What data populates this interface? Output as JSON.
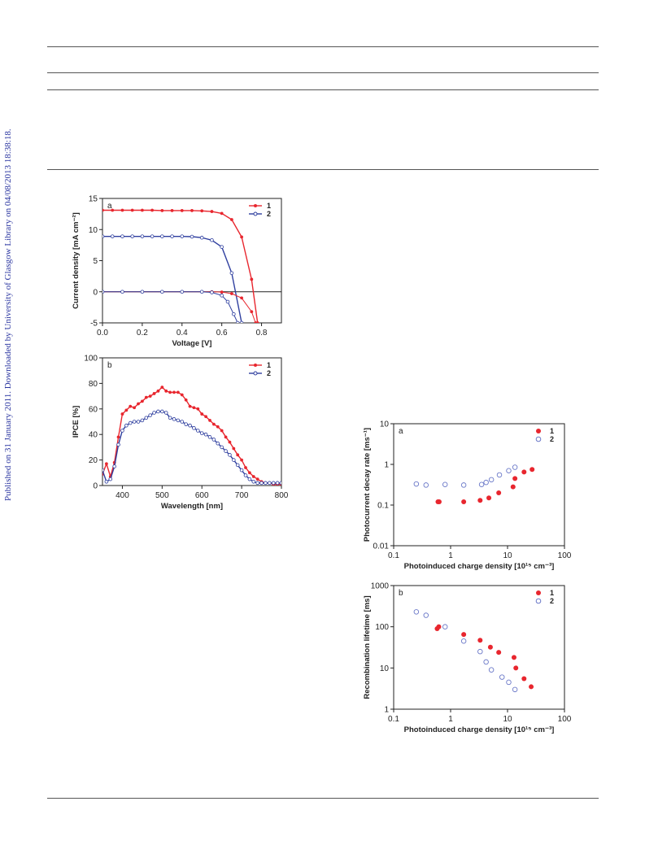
{
  "sidebar_text": "Published on 31 January 2011. Downloaded by University of Glasgow Library on 04/08/2013 18:38:18.",
  "colors": {
    "series1": "#e8262e",
    "series2": "#2f3f9f",
    "series2_open": "#6a78c8",
    "link": "#2a35a0"
  },
  "chart_data": [
    {
      "type": "line",
      "panel": "a",
      "xlabel": "Voltage [V]",
      "ylabel": "Current density [mA cm⁻²]",
      "xlim": [
        0,
        0.9
      ],
      "ylim": [
        -5,
        15
      ],
      "xticks": [
        "0.0",
        "0.2",
        "0.4",
        "0.6",
        "0.8"
      ],
      "yticks": [
        "-5",
        "0",
        "5",
        "10",
        "15"
      ],
      "legend": "top-right",
      "series": [
        {
          "name": "1",
          "kind": "light",
          "x": [
            0,
            0.05,
            0.1,
            0.15,
            0.2,
            0.25,
            0.3,
            0.35,
            0.4,
            0.45,
            0.5,
            0.55,
            0.6,
            0.65,
            0.7,
            0.75,
            0.78
          ],
          "y": [
            13.1,
            13.1,
            13.1,
            13.1,
            13.1,
            13.1,
            13.05,
            13.05,
            13.05,
            13.05,
            13.0,
            12.9,
            12.6,
            11.6,
            8.8,
            2.0,
            -5
          ]
        },
        {
          "name": "2",
          "kind": "light",
          "x": [
            0,
            0.05,
            0.1,
            0.15,
            0.2,
            0.25,
            0.3,
            0.35,
            0.4,
            0.45,
            0.5,
            0.55,
            0.6,
            0.65,
            0.7
          ],
          "y": [
            8.9,
            8.9,
            8.9,
            8.9,
            8.9,
            8.9,
            8.9,
            8.9,
            8.9,
            8.85,
            8.7,
            8.3,
            7.2,
            3.0,
            -5
          ]
        },
        {
          "name": "1",
          "kind": "dark",
          "x": [
            0,
            0.1,
            0.2,
            0.3,
            0.4,
            0.5,
            0.55,
            0.6,
            0.65,
            0.7,
            0.75,
            0.77
          ],
          "y": [
            0,
            0,
            0,
            0,
            0,
            0,
            0,
            -0.05,
            -0.3,
            -1.0,
            -3.2,
            -5
          ]
        },
        {
          "name": "2",
          "kind": "dark",
          "x": [
            0,
            0.1,
            0.2,
            0.3,
            0.4,
            0.5,
            0.55,
            0.6,
            0.63,
            0.66,
            0.68
          ],
          "y": [
            0,
            0,
            0,
            0,
            0,
            0,
            -0.1,
            -0.6,
            -1.6,
            -3.6,
            -5
          ]
        }
      ]
    },
    {
      "type": "line",
      "panel": "b",
      "xlabel": "Wavelength [nm]",
      "ylabel": "IPCE [%]",
      "xlim": [
        350,
        800
      ],
      "ylim": [
        0,
        100
      ],
      "xticks": [
        "400",
        "500",
        "600",
        "700",
        "800"
      ],
      "yticks": [
        "0",
        "20",
        "40",
        "60",
        "80",
        "100"
      ],
      "legend": "top-right",
      "series": [
        {
          "name": "1",
          "x": [
            350,
            360,
            370,
            380,
            390,
            400,
            410,
            420,
            430,
            440,
            450,
            460,
            470,
            480,
            490,
            500,
            510,
            520,
            530,
            540,
            550,
            560,
            570,
            580,
            590,
            600,
            610,
            620,
            630,
            640,
            650,
            660,
            670,
            680,
            690,
            700,
            710,
            720,
            730,
            740,
            750,
            760,
            770,
            780,
            790,
            800
          ],
          "y": [
            9,
            17,
            7,
            18,
            38,
            56,
            59,
            62,
            61,
            64,
            66,
            69,
            70,
            72,
            74,
            77,
            74,
            73,
            73,
            73,
            71,
            67,
            62,
            61,
            60,
            56,
            54,
            51,
            48,
            46,
            43,
            38,
            34,
            29,
            24,
            20,
            14,
            10,
            7,
            5,
            3,
            2,
            2,
            1,
            1,
            1
          ]
        },
        {
          "name": "2",
          "x": [
            350,
            360,
            370,
            380,
            390,
            400,
            410,
            420,
            430,
            440,
            450,
            460,
            470,
            480,
            490,
            500,
            510,
            520,
            530,
            540,
            550,
            560,
            570,
            580,
            590,
            600,
            610,
            620,
            630,
            640,
            650,
            660,
            670,
            680,
            690,
            700,
            710,
            720,
            730,
            740,
            750,
            760,
            770,
            780,
            790,
            800
          ],
          "y": [
            12,
            3,
            5,
            15,
            32,
            43,
            47,
            49,
            50,
            50,
            51,
            53,
            55,
            57,
            58,
            58,
            57,
            53,
            52,
            51,
            50,
            48,
            47,
            45,
            43,
            41,
            40,
            38,
            36,
            33,
            30,
            27,
            24,
            20,
            16,
            12,
            8,
            5,
            3,
            2,
            2,
            2,
            2,
            2,
            2,
            2
          ]
        }
      ]
    },
    {
      "type": "scatter",
      "panel": "a",
      "xlabel": "Photoinduced charge density [10¹⁵ cm⁻³]",
      "ylabel": "Photocurrent decay rate [ms⁻¹]",
      "xscale": "log",
      "yscale": "log",
      "xlim": [
        0.1,
        100
      ],
      "ylim": [
        0.01,
        10
      ],
      "xticks": [
        "0.1",
        "1",
        "10",
        "100"
      ],
      "yticks": [
        "0.01",
        "0.1",
        "1",
        "10"
      ],
      "legend": "top-right",
      "series": [
        {
          "name": "1",
          "x": [
            0.6,
            0.63,
            1.7,
            3.3,
            4.7,
            7.0,
            12.5,
            13.5,
            19.5,
            27
          ],
          "y": [
            0.12,
            0.12,
            0.12,
            0.13,
            0.15,
            0.2,
            0.28,
            0.45,
            0.65,
            0.75
          ]
        },
        {
          "name": "2",
          "x": [
            0.25,
            0.37,
            0.8,
            1.7,
            3.5,
            4.2,
            5.2,
            7.2,
            10.5,
            13.5
          ],
          "y": [
            0.33,
            0.31,
            0.32,
            0.31,
            0.32,
            0.36,
            0.42,
            0.55,
            0.7,
            0.85
          ]
        }
      ]
    },
    {
      "type": "scatter",
      "panel": "b",
      "xlabel": "Photoinduced charge density [10¹⁵ cm⁻³]",
      "ylabel": "Recombination lifetime [ms]",
      "xscale": "log",
      "yscale": "log",
      "xlim": [
        0.1,
        100
      ],
      "ylim": [
        1,
        1000
      ],
      "xticks": [
        "0.1",
        "1",
        "10",
        "100"
      ],
      "yticks": [
        "1",
        "10",
        "100",
        "1000"
      ],
      "legend": "top-right",
      "series": [
        {
          "name": "1",
          "x": [
            0.58,
            0.62,
            1.7,
            3.3,
            5.0,
            7.0,
            13,
            14,
            19.5,
            26
          ],
          "y": [
            90,
            100,
            65,
            47,
            32,
            24,
            18,
            10,
            5.5,
            3.5
          ]
        },
        {
          "name": "2",
          "x": [
            0.25,
            0.37,
            0.8,
            1.7,
            3.3,
            4.2,
            5.2,
            8.0,
            10.5,
            13.5
          ],
          "y": [
            230,
            190,
            100,
            45,
            25,
            14,
            9,
            6,
            4.5,
            3
          ]
        }
      ]
    }
  ]
}
